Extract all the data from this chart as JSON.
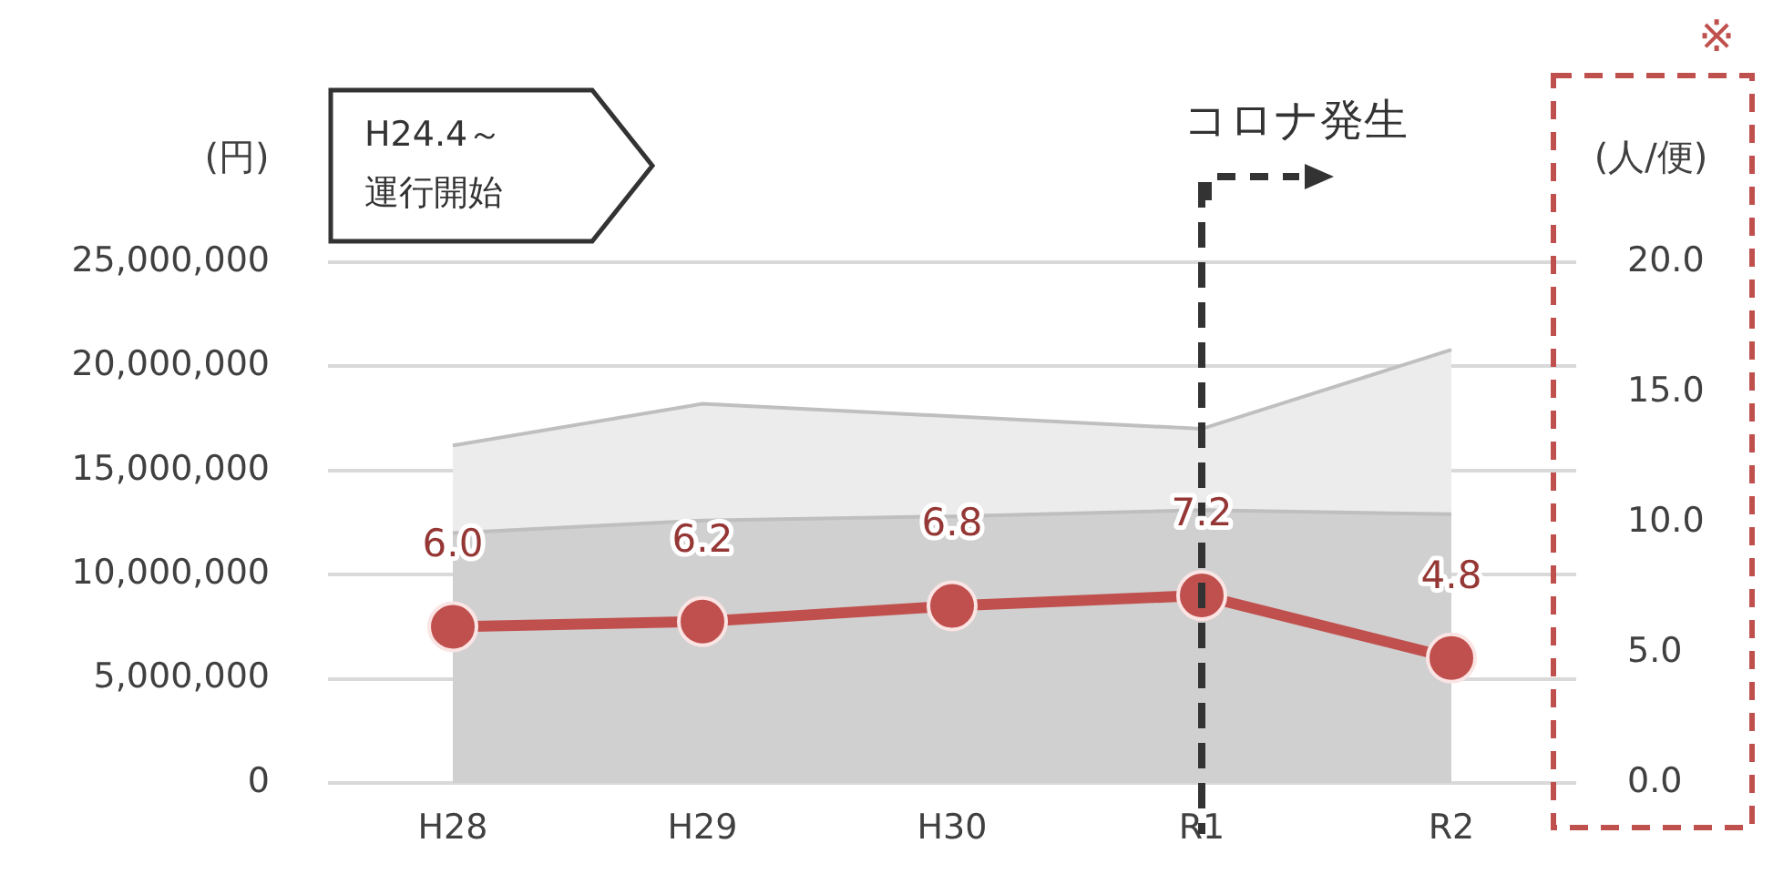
{
  "chart_data": {
    "type": "area",
    "stacked": true,
    "categories": [
      "H28",
      "H29",
      "H30",
      "R1",
      "R2"
    ],
    "ylabel": "(円)",
    "y2label": "(人/便)",
    "series": [
      {
        "color": "#d0d0d0",
        "values": [
          12000000,
          12600000,
          12800000,
          13100000,
          12900000
        ]
      },
      {
        "color": "#ececec",
        "values": [
          4200000,
          5600000,
          4800000,
          3900000,
          7900000
        ]
      },
      {
        "type": "line",
        "axis": "y2",
        "color": "#c0504d",
        "marker": "circle",
        "values": [
          6.0,
          6.2,
          6.8,
          7.2,
          4.8
        ],
        "value_labels": [
          "6.0",
          "6.2",
          "6.8",
          "7.2",
          "4.8"
        ]
      }
    ],
    "ylim": [
      0,
      25000000
    ],
    "yticks": [
      0,
      {
        "value": 5000000,
        "label": "5,000,000"
      },
      {
        "value": 10000000,
        "label": "10,000,000"
      },
      {
        "value": 15000000,
        "label": "15,000,000"
      },
      {
        "value": 20000000,
        "label": "20,000,000"
      },
      {
        "value": 25000000,
        "label": "25,000,000"
      }
    ],
    "y2lim": [
      0,
      20
    ],
    "y2ticks": [
      {
        "value": 0,
        "label": "0.0"
      },
      {
        "value": 5,
        "label": "5.0"
      },
      {
        "value": 10,
        "label": "10.0"
      },
      {
        "value": 15,
        "label": "15.0"
      },
      {
        "value": 20,
        "label": "20.0"
      }
    ],
    "grid": "y",
    "legend": false,
    "ref_lines": [
      {
        "axis": "x",
        "value": "R1",
        "label": "コロナ発生",
        "color": "#333333",
        "line_style": "dashed"
      }
    ],
    "annotations": [
      "H24.4～運行開始",
      "※"
    ]
  }
}
